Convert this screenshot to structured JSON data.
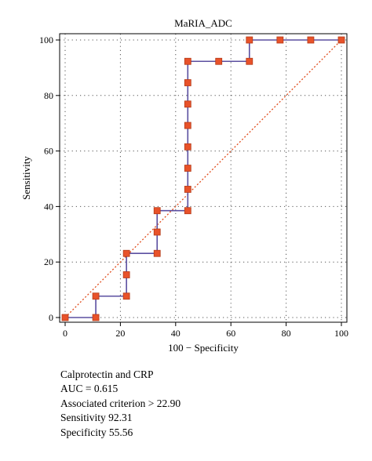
{
  "chart_data": {
    "type": "line",
    "title": "MaRIA_ADC",
    "xlabel": "100 − Specificity",
    "ylabel": "Sensitivity",
    "xlim": [
      0,
      100
    ],
    "ylim": [
      0,
      100
    ],
    "xticks": [
      0,
      20,
      40,
      60,
      80,
      100
    ],
    "yticks": [
      0,
      20,
      40,
      60,
      80,
      100
    ],
    "grid": "dotted",
    "series": [
      {
        "role": "roc-curve",
        "x": [
          0,
          11.1,
          11.1,
          22.2,
          22.2,
          22.2,
          33.3,
          33.3,
          33.3,
          44.4,
          44.4,
          44.4,
          44.4,
          44.4,
          44.4,
          44.4,
          44.4,
          55.6,
          66.7,
          66.7,
          77.8,
          88.9,
          100
        ],
        "y": [
          0,
          0,
          7.7,
          7.7,
          15.4,
          23.1,
          23.1,
          30.8,
          38.5,
          38.5,
          46.2,
          53.8,
          61.5,
          69.2,
          76.9,
          84.6,
          92.3,
          92.3,
          92.3,
          100,
          100,
          100,
          100
        ]
      },
      {
        "role": "reference-diagonal",
        "x": [
          0,
          100
        ],
        "y": [
          0,
          100
        ]
      }
    ],
    "colors": {
      "curve": "#5b4fa0",
      "marker_fill": "#e8522a",
      "marker_stroke": "#b33a18",
      "diagonal": "#e04b1a",
      "grid": "#555555"
    }
  },
  "stats": {
    "line1": "Calprotectin and CRP",
    "line2": "AUC = 0.615",
    "line3": "Associated criterion > 22.90",
    "line4": "Sensitivity 92.31",
    "line5": "Specificity 55.56"
  }
}
